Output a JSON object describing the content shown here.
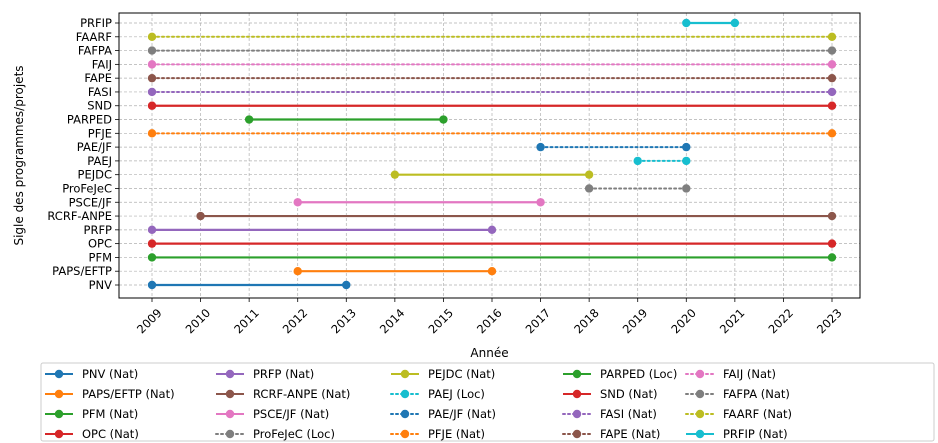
{
  "chart_data": {
    "type": "line",
    "xlabel": "Année",
    "ylabel": "Sigle des programmes/projets",
    "xlim": [
      2009,
      2023
    ],
    "x_ticks": [
      2009,
      2010,
      2011,
      2012,
      2013,
      2014,
      2015,
      2016,
      2017,
      2018,
      2019,
      2020,
      2021,
      2022,
      2023
    ],
    "grid": true,
    "legend_placement": "below",
    "y_categories": [
      "PNV",
      "PAPS/EFTP",
      "PFM",
      "OPC",
      "PRFP",
      "RCRF-ANPE",
      "PSCE/JF",
      "ProFeJeC",
      "PEJDC",
      "PAEJ",
      "PAE/JF",
      "PFJE",
      "PARPED",
      "SND",
      "FASI",
      "FAPE",
      "FAIJ",
      "FAFPA",
      "FAARF",
      "PRFIP"
    ],
    "series": [
      {
        "name": "PNV (Nat)",
        "category": "PNV",
        "x": [
          2009,
          2013
        ],
        "color": "#1f77b4",
        "style": "solid"
      },
      {
        "name": "PAPS/EFTP (Nat)",
        "category": "PAPS/EFTP",
        "x": [
          2012,
          2016
        ],
        "color": "#ff7f0e",
        "style": "solid"
      },
      {
        "name": "PFM (Nat)",
        "category": "PFM",
        "x": [
          2009,
          2023
        ],
        "color": "#2ca02c",
        "style": "solid"
      },
      {
        "name": "OPC (Nat)",
        "category": "OPC",
        "x": [
          2009,
          2023
        ],
        "color": "#d62728",
        "style": "solid"
      },
      {
        "name": "PRFP (Nat)",
        "category": "PRFP",
        "x": [
          2009,
          2016
        ],
        "color": "#9467bd",
        "style": "solid"
      },
      {
        "name": "RCRF-ANPE (Nat)",
        "category": "RCRF-ANPE",
        "x": [
          2010,
          2023
        ],
        "color": "#8c564b",
        "style": "solid"
      },
      {
        "name": "PSCE/JF (Nat)",
        "category": "PSCE/JF",
        "x": [
          2012,
          2017
        ],
        "color": "#e377c2",
        "style": "solid"
      },
      {
        "name": "ProFeJeC (Loc)",
        "category": "ProFeJeC",
        "x": [
          2018,
          2020
        ],
        "color": "#7f7f7f",
        "style": "dotted"
      },
      {
        "name": "PEJDC (Nat)",
        "category": "PEJDC",
        "x": [
          2014,
          2018
        ],
        "color": "#bcbd22",
        "style": "solid"
      },
      {
        "name": "PAEJ (Loc)",
        "category": "PAEJ",
        "x": [
          2019,
          2020
        ],
        "color": "#17becf",
        "style": "dotted"
      },
      {
        "name": "PAE/JF (Nat)",
        "category": "PAE/JF",
        "x": [
          2017,
          2020
        ],
        "color": "#1f77b4",
        "style": "dotted"
      },
      {
        "name": "PFJE (Nat)",
        "category": "PFJE",
        "x": [
          2009,
          2023
        ],
        "color": "#ff7f0e",
        "style": "dotted"
      },
      {
        "name": "PARPED (Loc)",
        "category": "PARPED",
        "x": [
          2011,
          2015
        ],
        "color": "#2ca02c",
        "style": "solid"
      },
      {
        "name": "SND (Nat)",
        "category": "SND",
        "x": [
          2009,
          2023
        ],
        "color": "#d62728",
        "style": "solid"
      },
      {
        "name": "FASI (Nat)",
        "category": "FASI",
        "x": [
          2009,
          2023
        ],
        "color": "#9467bd",
        "style": "dotted"
      },
      {
        "name": "FAPE (Nat)",
        "category": "FAPE",
        "x": [
          2009,
          2023
        ],
        "color": "#8c564b",
        "style": "dotted"
      },
      {
        "name": "FAIJ (Nat)",
        "category": "FAIJ",
        "x": [
          2009,
          2023
        ],
        "color": "#e377c2",
        "style": "dotted"
      },
      {
        "name": "FAFPA (Nat)",
        "category": "FAFPA",
        "x": [
          2009,
          2023
        ],
        "color": "#7f7f7f",
        "style": "dotted"
      },
      {
        "name": "FAARF (Nat)",
        "category": "FAARF",
        "x": [
          2009,
          2023
        ],
        "color": "#bcbd22",
        "style": "dotted"
      },
      {
        "name": "PRFIP (Nat)",
        "category": "PRFIP",
        "x": [
          2020,
          2021
        ],
        "color": "#17becf",
        "style": "solid"
      }
    ]
  }
}
